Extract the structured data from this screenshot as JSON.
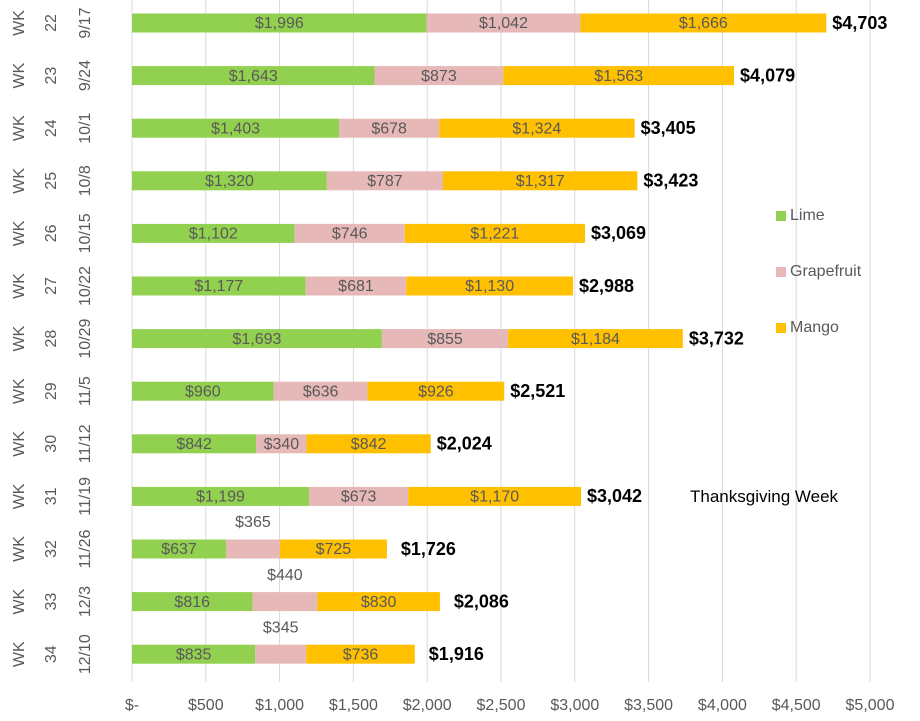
{
  "chart_data": {
    "type": "stacked-bar-horizontal",
    "categories": [
      [
        "WK",
        "22",
        "9/17"
      ],
      [
        "WK",
        "23",
        "9/24"
      ],
      [
        "WK",
        "24",
        "10/1"
      ],
      [
        "WK",
        "25",
        "10/8"
      ],
      [
        "WK",
        "26",
        "10/15"
      ],
      [
        "WK",
        "27",
        "10/22"
      ],
      [
        "WK",
        "28",
        "10/29"
      ],
      [
        "WK",
        "29",
        "11/5"
      ],
      [
        "WK",
        "30",
        "11/12"
      ],
      [
        "WK",
        "31",
        "11/19"
      ],
      [
        "WK",
        "32",
        "11/26"
      ],
      [
        "WK",
        "33",
        "12/3"
      ],
      [
        "WK",
        "34",
        "12/10"
      ]
    ],
    "series": [
      {
        "name": "Lime",
        "color": "#92d050",
        "values": [
          1996,
          1643,
          1403,
          1320,
          1102,
          1177,
          1693,
          960,
          842,
          1199,
          637,
          816,
          835
        ],
        "value_labels": [
          "$1,996",
          "$1,643",
          "$1,403",
          "$1,320",
          "$1,102",
          "$1,177",
          "$1,693",
          "$960",
          "$842",
          "$1,199",
          "$637",
          "$816",
          "$835"
        ]
      },
      {
        "name": "Grapefruit",
        "color": "#e6b8b7",
        "values": [
          1042,
          873,
          678,
          787,
          746,
          681,
          855,
          636,
          340,
          673,
          365,
          440,
          345
        ],
        "value_labels": [
          "$1,042",
          "$873",
          "$678",
          "$787",
          "$746",
          "$681",
          "$855",
          "$636",
          "$340",
          "$673",
          "$365",
          "$440",
          "$345"
        ]
      },
      {
        "name": "Mango",
        "color": "#ffc000",
        "values": [
          1666,
          1563,
          1324,
          1317,
          1221,
          1130,
          1184,
          926,
          842,
          1170,
          725,
          830,
          736
        ],
        "value_labels": [
          "$1,666",
          "$1,563",
          "$1,324",
          "$1,317",
          "$1,221",
          "$1,130",
          "$1,184",
          "$926",
          "$842",
          "$1,170",
          "$725",
          "$830",
          "$736"
        ]
      }
    ],
    "totals": [
      4703,
      4079,
      3405,
      3423,
      3069,
      2988,
      3732,
      2521,
      2024,
      3042,
      1726,
      2086,
      1916
    ],
    "total_labels": [
      "$4,703",
      "$4,079",
      "$3,405",
      "$3,423",
      "$3,069",
      "$2,988",
      "$3,732",
      "$2,521",
      "$2,024",
      "$3,042",
      "$1,726",
      "$2,086",
      "$1,916"
    ],
    "annotation": {
      "text": "Thanksgiving Week",
      "category": 9
    },
    "xlim": [
      0,
      5000
    ],
    "xticks": [
      {
        "value": 0,
        "label": "$-"
      },
      {
        "value": 500,
        "label": "$500"
      },
      {
        "value": 1000,
        "label": "$1,000"
      },
      {
        "value": 1500,
        "label": "$1,500"
      },
      {
        "value": 2000,
        "label": "$2,000"
      },
      {
        "value": 2500,
        "label": "$2,500"
      },
      {
        "value": 3000,
        "label": "$3,000"
      },
      {
        "value": 3500,
        "label": "$3,500"
      },
      {
        "value": 4000,
        "label": "$4,000"
      },
      {
        "value": 4500,
        "label": "$4,500"
      },
      {
        "value": 5000,
        "label": "$5,000"
      }
    ],
    "grid": true,
    "legend": "right"
  }
}
